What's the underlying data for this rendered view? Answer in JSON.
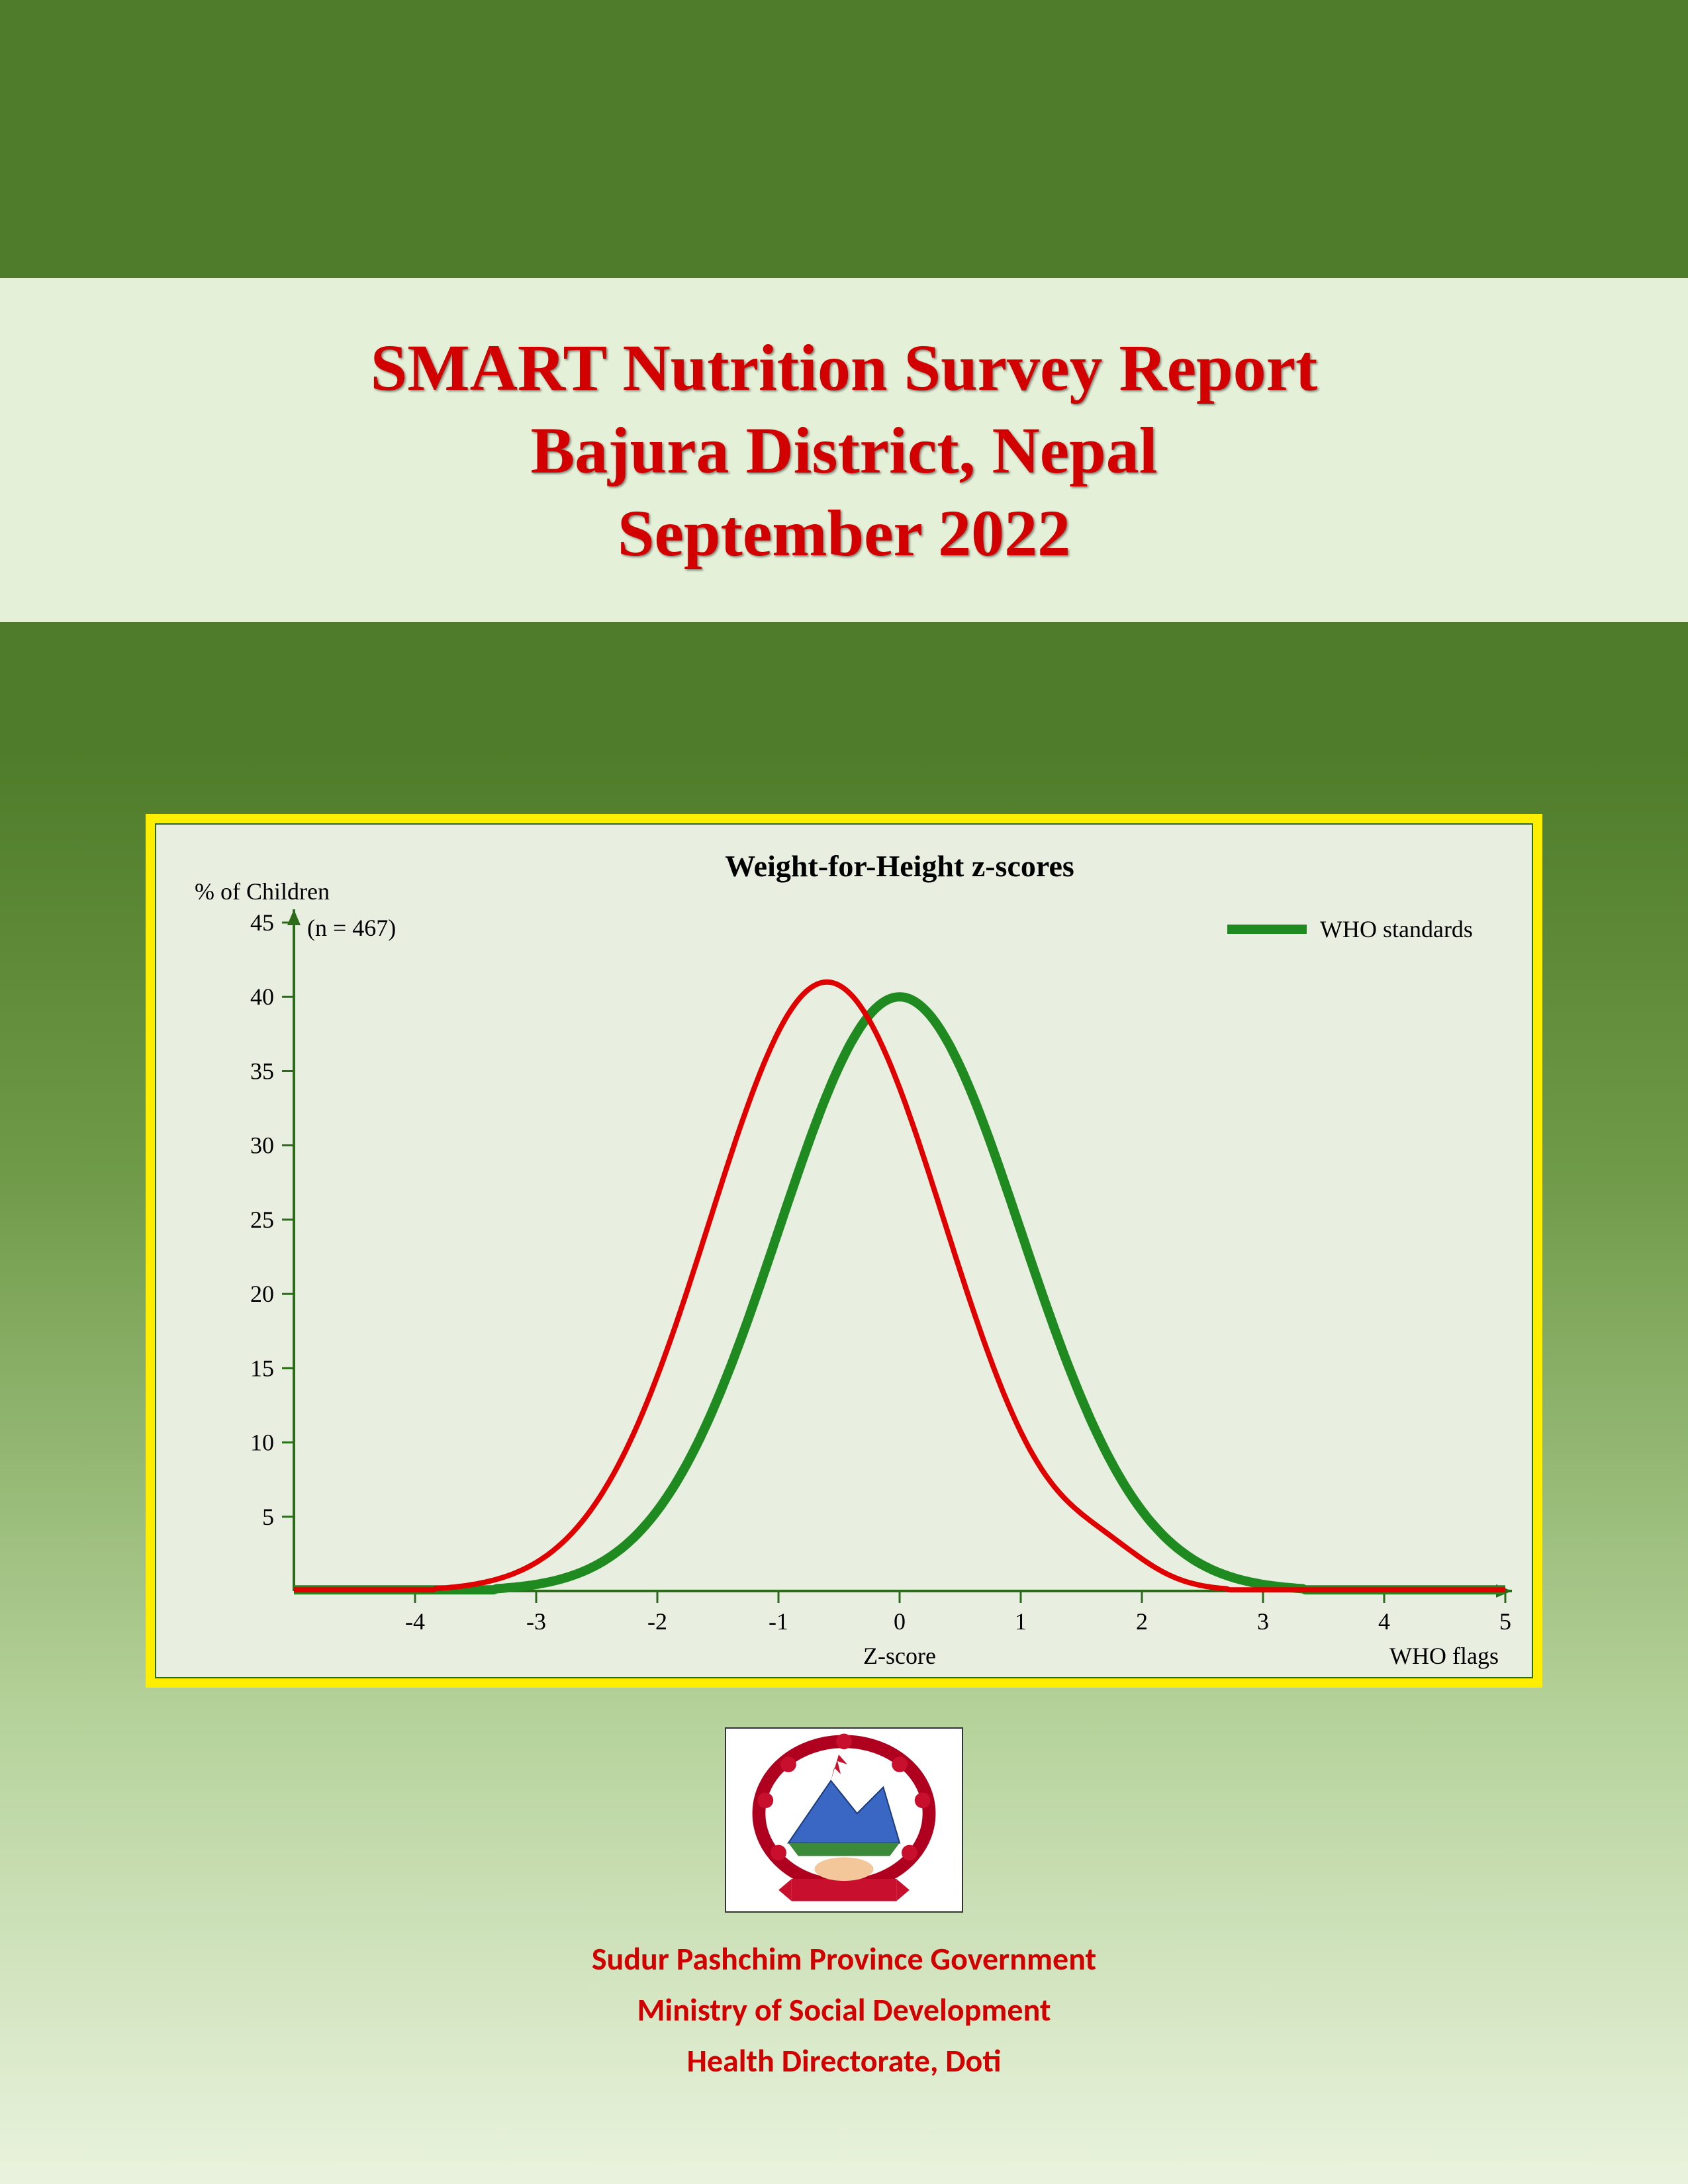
{
  "title": {
    "line1": "SMART Nutrition Survey Report",
    "line2": "Bajura District, Nepal",
    "line3": "September 2022",
    "color": "#d30000",
    "fontsize": 100,
    "background": "#e5f0d8"
  },
  "page": {
    "top_band_color": "#4f7c2a",
    "gradient_from": "#4f7c2a",
    "gradient_to": "#eaf3de"
  },
  "chart": {
    "type": "line",
    "title": "Weight-for-Height z-scores",
    "title_fontsize": 46,
    "title_color": "#000000",
    "ylabel_line1": "% of Children",
    "ylabel_line2": "(n = 467)",
    "xlabel": "Z-score",
    "corner_label": "WHO flags",
    "legend_label": "WHO standards",
    "legend_color": "#1f8a1f",
    "background": "#e8efe0",
    "border_color": "#ffee00",
    "axis_color": "#2b6b1a",
    "tick_color": "#2b6b1a",
    "xlim": [
      -5,
      5
    ],
    "ylim": [
      0,
      45
    ],
    "xticks": [
      -4,
      -3,
      -2,
      -1,
      0,
      1,
      2,
      3,
      4,
      5
    ],
    "yticks": [
      5,
      10,
      15,
      20,
      25,
      30,
      35,
      40,
      45
    ],
    "label_fontsize": 36,
    "tick_fontsize": 36,
    "series": [
      {
        "name": "who",
        "color": "#1f8a1f",
        "width": 14,
        "mean": 0.0,
        "sd": 1.0,
        "peak": 40.0,
        "irregularities": []
      },
      {
        "name": "survey",
        "color": "#e00000",
        "width": 8,
        "mean": -0.6,
        "sd": 0.97,
        "peak": 41.0,
        "irregularities": [
          {
            "x": 1.7,
            "bump": 1.5,
            "width": 0.35
          }
        ]
      }
    ]
  },
  "emblem": {
    "alt": "Nepal provincial emblem"
  },
  "footer": {
    "line1": "Sudur Pashchim Province Government",
    "line2": "Ministry of Social Development",
    "line3": "Health Directorate, Doti",
    "color": "#d30000",
    "fontsize": 48
  }
}
